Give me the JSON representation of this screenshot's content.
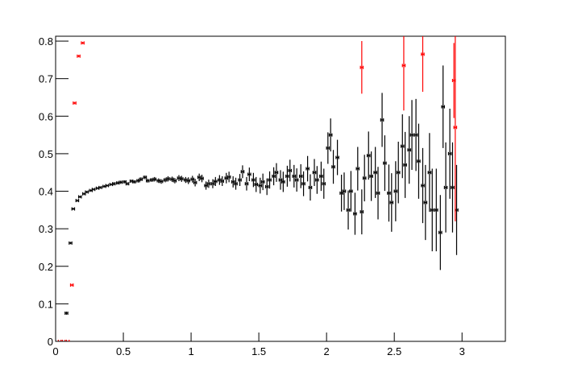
{
  "chart_data": {
    "type": "errorbar",
    "xlim": [
      0,
      3.32
    ],
    "ylim": [
      0,
      0.813
    ],
    "xticks": [
      0,
      0.5,
      1,
      1.5,
      2,
      2.5,
      3
    ],
    "yticks": [
      0,
      0.1,
      0.2,
      0.3,
      0.4,
      0.5,
      0.6,
      0.7,
      0.8
    ],
    "x_error": 0.01,
    "series": [
      {
        "color": "#000000",
        "x": [
          0.08,
          0.11,
          0.13,
          0.16,
          0.18,
          0.21,
          0.23,
          0.26,
          0.28,
          0.31,
          0.33,
          0.36,
          0.38,
          0.41,
          0.43,
          0.46,
          0.48,
          0.51,
          0.53,
          0.56,
          0.58,
          0.61,
          0.63,
          0.66,
          0.68,
          0.71,
          0.73,
          0.76,
          0.78,
          0.81,
          0.83,
          0.86,
          0.88,
          0.91,
          0.93,
          0.96,
          0.98,
          1.01,
          1.03,
          1.06,
          1.08,
          1.11,
          1.13,
          1.16,
          1.18,
          1.21,
          1.23,
          1.26,
          1.28,
          1.31,
          1.33,
          1.36,
          1.38,
          1.41,
          1.43,
          1.46,
          1.48,
          1.51,
          1.53,
          1.56,
          1.58,
          1.61,
          1.63,
          1.66,
          1.68,
          1.71,
          1.73,
          1.76,
          1.78,
          1.81,
          1.83,
          1.86,
          1.88,
          1.91,
          1.93,
          1.96,
          1.98,
          2.01,
          2.03,
          2.05,
          2.08,
          2.11,
          2.13,
          2.16,
          2.18,
          2.21,
          2.23,
          2.26,
          2.28,
          2.31,
          2.33,
          2.36,
          2.38,
          2.41,
          2.43,
          2.46,
          2.48,
          2.51,
          2.53,
          2.56,
          2.58,
          2.61,
          2.63,
          2.66,
          2.68,
          2.71,
          2.73,
          2.76,
          2.78,
          2.81,
          2.84,
          2.86,
          2.88,
          2.91,
          2.93,
          2.96
        ],
        "values": [
          0.075,
          0.262,
          0.353,
          0.375,
          0.385,
          0.393,
          0.398,
          0.402,
          0.405,
          0.408,
          0.41,
          0.413,
          0.415,
          0.418,
          0.42,
          0.422,
          0.424,
          0.425,
          0.42,
          0.427,
          0.425,
          0.428,
          0.432,
          0.437,
          0.428,
          0.43,
          0.432,
          0.428,
          0.426,
          0.43,
          0.433,
          0.432,
          0.428,
          0.435,
          0.433,
          0.43,
          0.428,
          0.432,
          0.423,
          0.437,
          0.434,
          0.415,
          0.42,
          0.42,
          0.426,
          0.43,
          0.427,
          0.435,
          0.438,
          0.425,
          0.42,
          0.43,
          0.452,
          0.42,
          0.445,
          0.43,
          0.418,
          0.415,
          0.425,
          0.412,
          0.43,
          0.44,
          0.45,
          0.43,
          0.425,
          0.44,
          0.455,
          0.44,
          0.43,
          0.44,
          0.42,
          0.46,
          0.41,
          0.45,
          0.43,
          0.44,
          0.42,
          0.515,
          0.55,
          0.465,
          0.49,
          0.395,
          0.4,
          0.35,
          0.4,
          0.34,
          0.46,
          0.345,
          0.435,
          0.495,
          0.44,
          0.45,
          0.395,
          0.59,
          0.475,
          0.395,
          0.37,
          0.4,
          0.45,
          0.52,
          0.47,
          0.51,
          0.55,
          0.55,
          0.48,
          0.415,
          0.37,
          0.45,
          0.35,
          0.35,
          0.29,
          0.625,
          0.41,
          0.5,
          0.41,
          0.35
        ],
        "errors": [
          0.004,
          0.003,
          0.003,
          0.003,
          0.003,
          0.003,
          0.003,
          0.003,
          0.003,
          0.003,
          0.003,
          0.003,
          0.003,
          0.003,
          0.004,
          0.004,
          0.004,
          0.004,
          0.004,
          0.004,
          0.004,
          0.005,
          0.005,
          0.005,
          0.005,
          0.005,
          0.006,
          0.006,
          0.006,
          0.006,
          0.007,
          0.007,
          0.007,
          0.008,
          0.008,
          0.008,
          0.009,
          0.009,
          0.01,
          0.01,
          0.01,
          0.011,
          0.011,
          0.012,
          0.012,
          0.013,
          0.013,
          0.014,
          0.014,
          0.015,
          0.016,
          0.016,
          0.017,
          0.018,
          0.018,
          0.019,
          0.02,
          0.021,
          0.022,
          0.022,
          0.023,
          0.024,
          0.025,
          0.026,
          0.027,
          0.028,
          0.029,
          0.03,
          0.031,
          0.032,
          0.033,
          0.034,
          0.035,
          0.036,
          0.037,
          0.039,
          0.04,
          0.042,
          0.044,
          0.045,
          0.047,
          0.049,
          0.05,
          0.052,
          0.054,
          0.056,
          0.058,
          0.06,
          0.062,
          0.064,
          0.066,
          0.068,
          0.07,
          0.072,
          0.074,
          0.076,
          0.078,
          0.08,
          0.082,
          0.085,
          0.088,
          0.09,
          0.093,
          0.096,
          0.1,
          0.1,
          0.1,
          0.105,
          0.11,
          0.11,
          0.1,
          0.11,
          0.12,
          0.12,
          0.12,
          0.12
        ]
      },
      {
        "color": "#ff0000",
        "x": [
          0.03,
          0.06,
          0.09,
          0.12,
          0.14,
          0.17,
          0.2,
          2.26,
          2.57,
          2.71,
          2.94,
          2.95
        ],
        "values": [
          0,
          0,
          0,
          0.15,
          0.635,
          0.76,
          0.795,
          0.73,
          0.735,
          0.765,
          0.695,
          0.57
        ],
        "errors": [
          0,
          0,
          0,
          0.003,
          0.003,
          0.003,
          0.003,
          0.07,
          0.12,
          0.1,
          0.1,
          0.25
        ]
      }
    ]
  }
}
